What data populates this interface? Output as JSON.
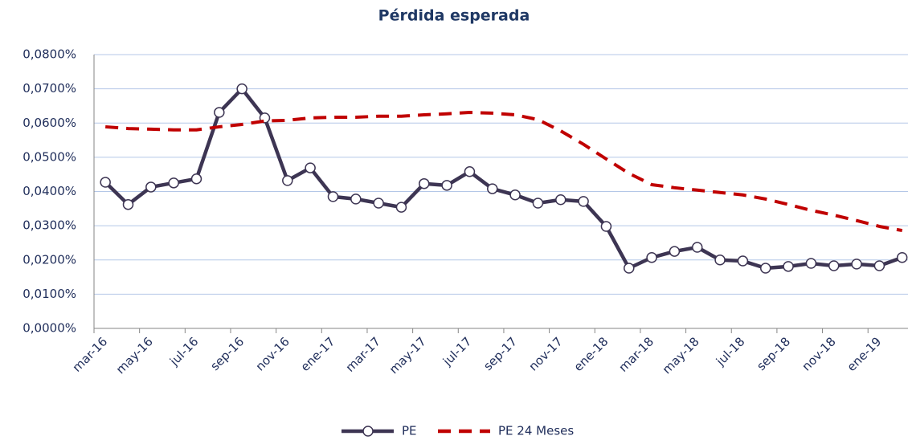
{
  "chart_data": {
    "type": "line",
    "title": "Pérdida esperada",
    "categories": [
      "mar-16",
      null,
      "may-16",
      null,
      "jul-16",
      null,
      "sep-16",
      null,
      "nov-16",
      null,
      "ene-17",
      null,
      "mar-17",
      null,
      "may-17",
      null,
      "jul-17",
      null,
      "sep-17",
      null,
      "nov-17",
      null,
      "ene-18",
      null,
      "mar-18",
      null,
      "may-18",
      null,
      "jul-18",
      null,
      "sep-18",
      null,
      "nov-18",
      null,
      "ene-19",
      null
    ],
    "series": [
      {
        "name": "PE",
        "color": "#3d3553",
        "style": "solid",
        "markers": true,
        "values": [
          0.0427,
          0.0362,
          0.0413,
          0.0425,
          0.0437,
          0.0631,
          0.07,
          0.0615,
          0.0432,
          0.0469,
          0.0385,
          0.0378,
          0.0366,
          0.0354,
          0.0423,
          0.0418,
          0.0458,
          0.0408,
          0.039,
          0.0366,
          0.0376,
          0.0371,
          0.0298,
          0.0176,
          0.0207,
          0.0225,
          0.0237,
          0.02,
          0.0197,
          0.0176,
          0.0181,
          0.019,
          0.0183,
          0.0188,
          0.0183,
          0.0207
        ]
      },
      {
        "name": "PE 24 Meses",
        "color": "#c00000",
        "style": "dashed",
        "markers": false,
        "values": [
          0.0589,
          0.0584,
          0.0582,
          0.058,
          0.058,
          0.0589,
          0.0596,
          0.0606,
          0.0608,
          0.0615,
          0.0617,
          0.0617,
          0.062,
          0.062,
          0.0624,
          0.0627,
          0.0631,
          0.0629,
          0.0624,
          0.061,
          0.0577,
          0.0538,
          0.0495,
          0.0453,
          0.042,
          0.0411,
          0.0404,
          0.0397,
          0.039,
          0.0378,
          0.0362,
          0.0345,
          0.0331,
          0.0315,
          0.0298,
          0.0286
        ]
      }
    ],
    "ylim": [
      0,
      0.08
    ],
    "yticks": [
      {
        "value": 0,
        "label": "0,0000%"
      },
      {
        "value": 0.01,
        "label": "0,0100%"
      },
      {
        "value": 0.02,
        "label": "0,0200%"
      },
      {
        "value": 0.03,
        "label": "0,0300%"
      },
      {
        "value": 0.04,
        "label": "0,0400%"
      },
      {
        "value": 0.05,
        "label": "0,0500%"
      },
      {
        "value": 0.06,
        "label": "0,0600%"
      },
      {
        "value": 0.07,
        "label": "0,0700%"
      },
      {
        "value": 0.08,
        "label": "0,0800%"
      }
    ],
    "grid": true,
    "legend": "bottom"
  }
}
